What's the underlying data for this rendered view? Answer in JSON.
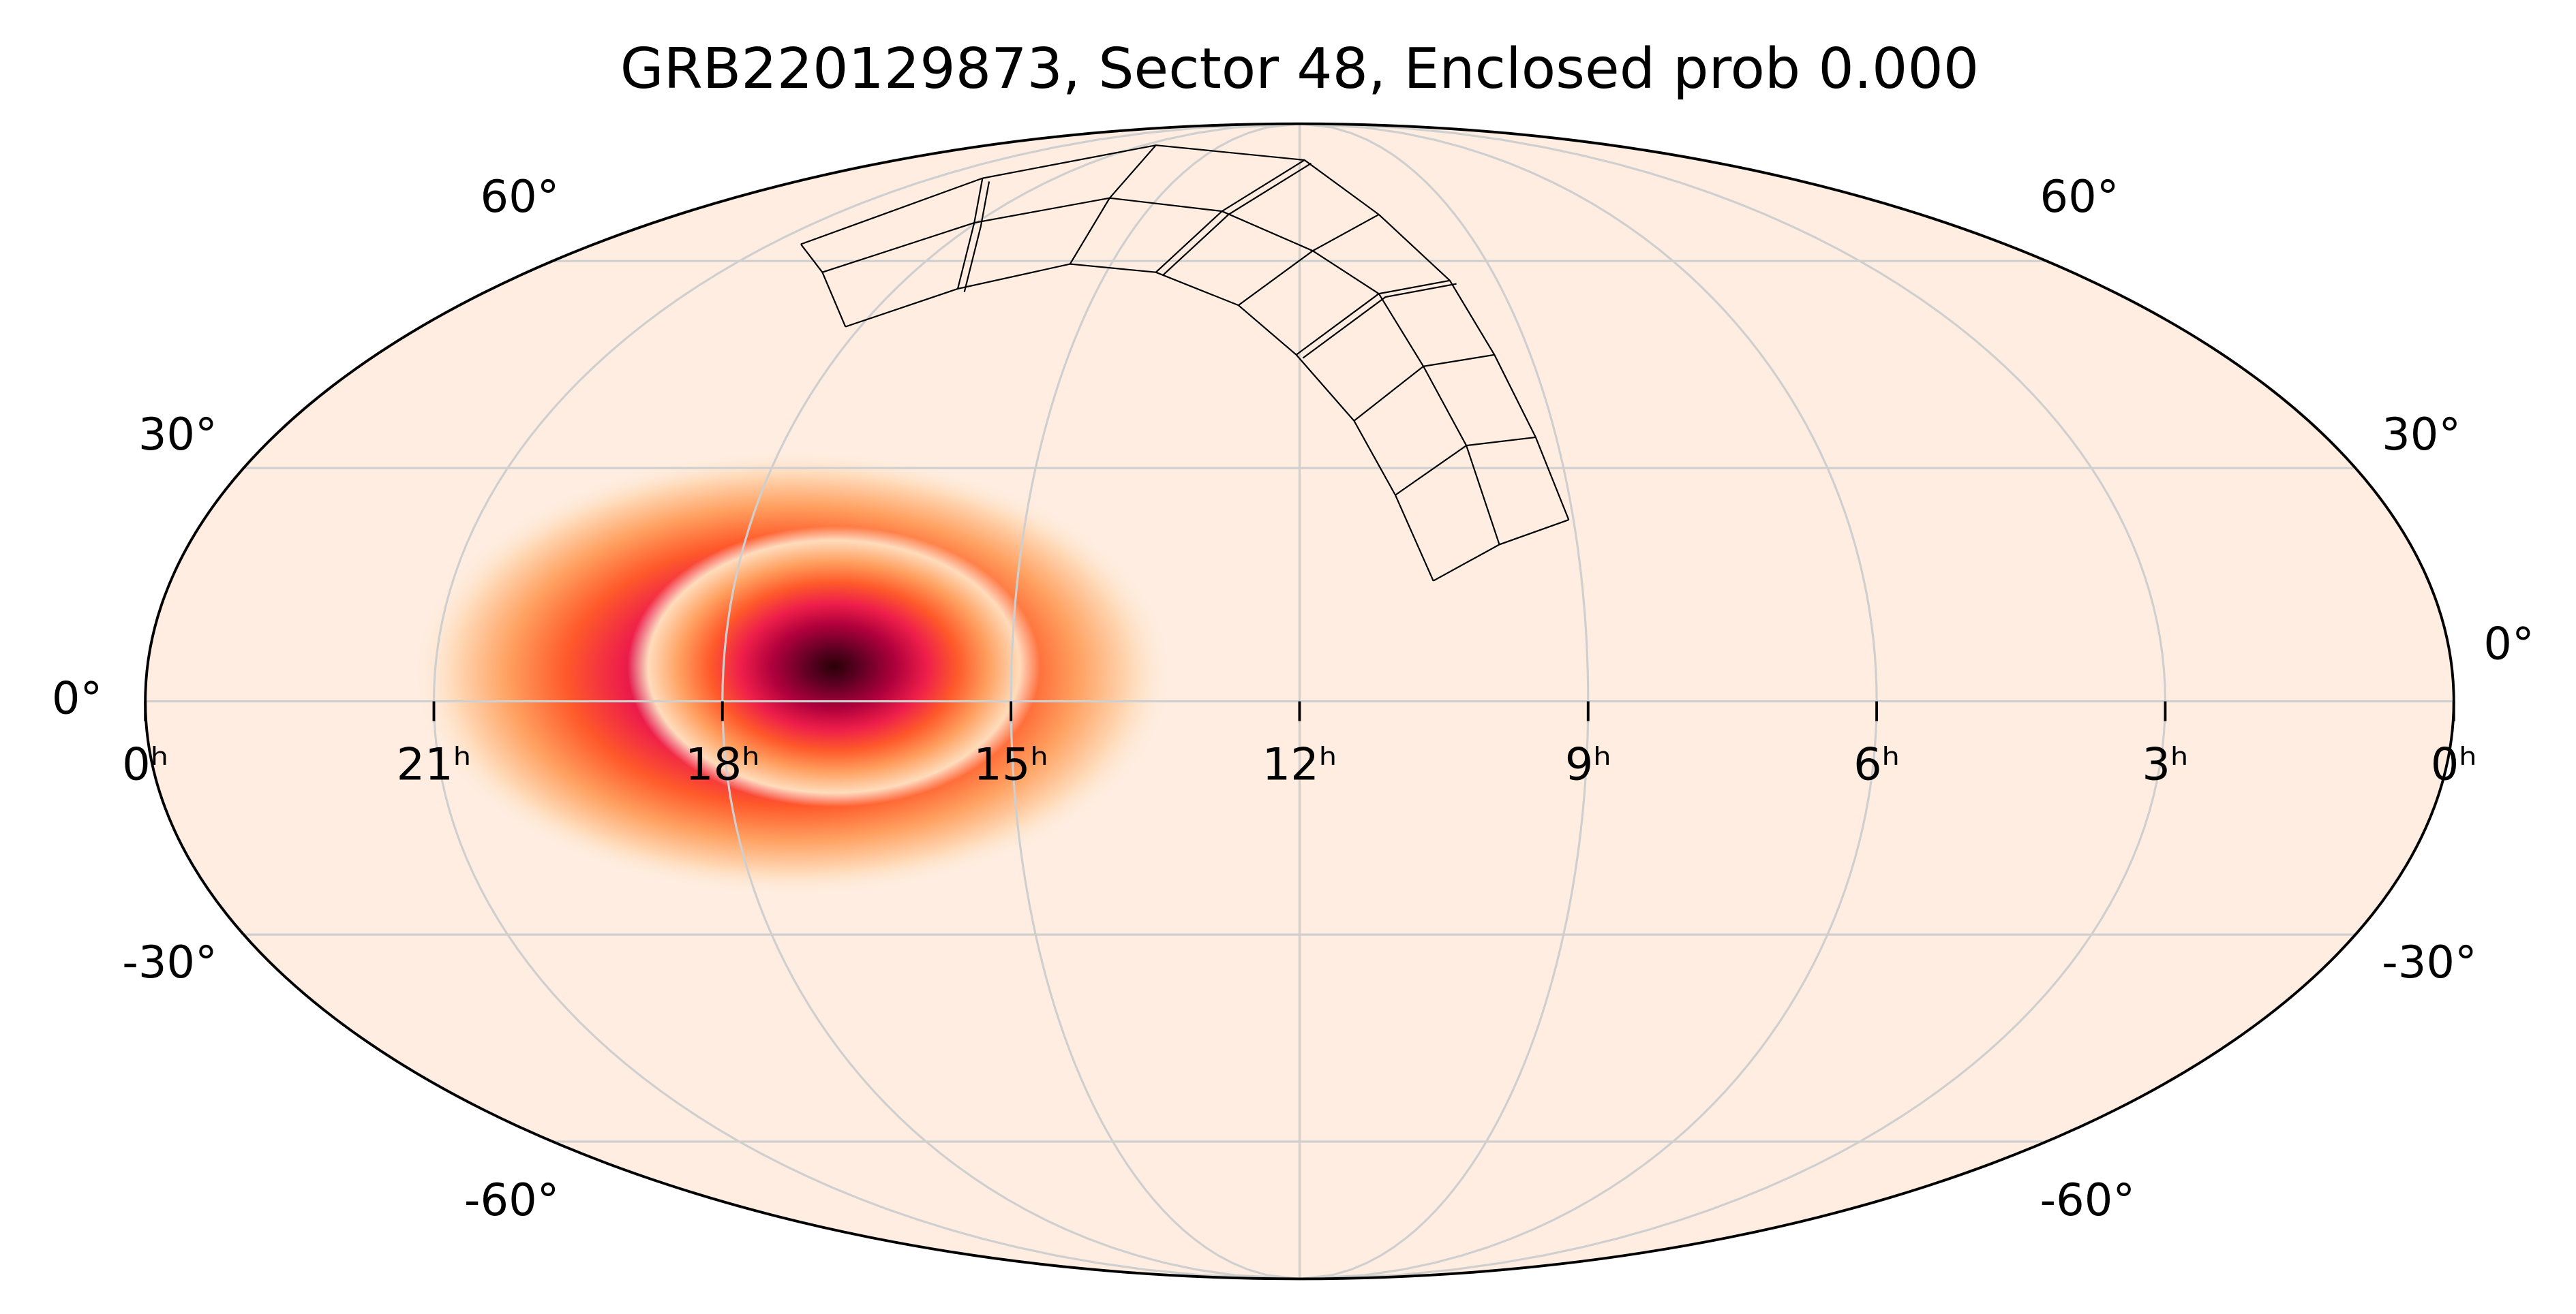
{
  "chart_data": {
    "type": "skymap",
    "title": "GRB220129873, Sector 48, Enclosed prob 0.000",
    "xlim": [
      24,
      0
    ],
    "xticks": [
      {
        "value": 24,
        "label": "0ʰ"
      },
      {
        "value": 21,
        "label": "21ʰ"
      },
      {
        "value": 18,
        "label": "18ʰ"
      },
      {
        "value": 15,
        "label": "15ʰ"
      },
      {
        "value": 12,
        "label": "12ʰ"
      },
      {
        "value": 9,
        "label": "9ʰ"
      },
      {
        "value": 6,
        "label": "6ʰ"
      },
      {
        "value": 3,
        "label": "3ʰ"
      },
      {
        "value": 0,
        "label": "0ʰ"
      }
    ],
    "ylim": [
      -90,
      90
    ],
    "yticks": [
      {
        "value": -60,
        "label": "-60°"
      },
      {
        "value": -30,
        "label": "-30°"
      },
      {
        "value": 0,
        "label": "0°"
      },
      {
        "value": 30,
        "label": "30°"
      },
      {
        "value": 60,
        "label": "60°"
      }
    ],
    "grid": true
  }
}
